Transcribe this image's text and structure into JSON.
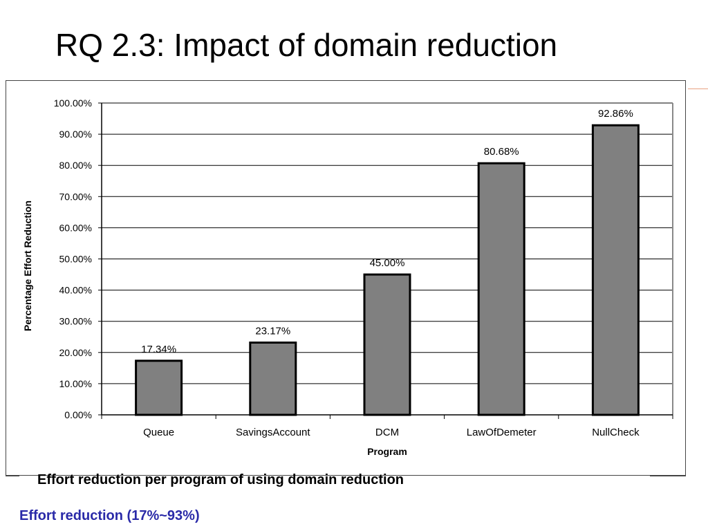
{
  "slide": {
    "title": "RQ 2.3: Impact of domain reduction",
    "caption": "Effort reduction per program of using domain reduction",
    "summary": "Effort reduction (17%~93%)"
  },
  "colors": {
    "bar_fill": "#808080",
    "bar_stroke": "#000000",
    "summary_text": "#2a2aa8",
    "accent": "#e8a080"
  },
  "chart_data": {
    "type": "bar",
    "categories": [
      "Queue",
      "SavingsAccount",
      "DCM",
      "LawOfDemeter",
      "NullCheck"
    ],
    "values": [
      17.34,
      23.17,
      45.0,
      80.68,
      92.86
    ],
    "data_labels": [
      "17.34%",
      "23.17%",
      "45.00%",
      "80.68%",
      "92.86%"
    ],
    "title": "",
    "xlabel": "Program",
    "ylabel": "Percentage Effort Reduction",
    "ylim": [
      0,
      100
    ],
    "yticks": [
      0,
      10,
      20,
      30,
      40,
      50,
      60,
      70,
      80,
      90,
      100
    ],
    "ytick_labels": [
      "0.00%",
      "10.00%",
      "20.00%",
      "30.00%",
      "40.00%",
      "50.00%",
      "60.00%",
      "70.00%",
      "80.00%",
      "90.00%",
      "100.00%"
    ],
    "grid": true,
    "legend": "none"
  }
}
